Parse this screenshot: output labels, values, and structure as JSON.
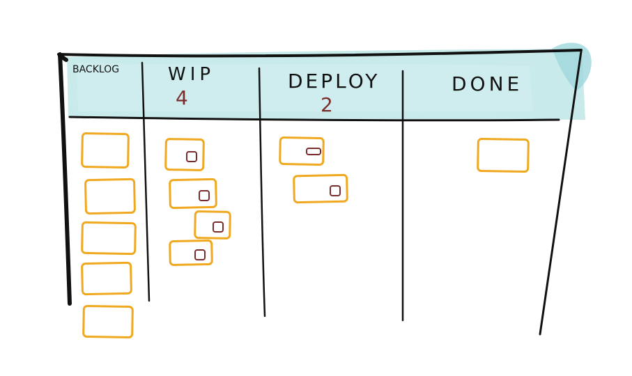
{
  "board": {
    "columns": [
      {
        "name": "BACKLOG",
        "limit": "",
        "cards": 5,
        "tagged_cards": 0
      },
      {
        "name": "WIP",
        "limit": "4",
        "cards": 4,
        "tagged_cards": 4
      },
      {
        "name": "DEPLOY",
        "limit": "2",
        "cards": 2,
        "tagged_cards": 2
      },
      {
        "name": "DONE",
        "limit": "",
        "cards": 1,
        "tagged_cards": 0
      }
    ]
  },
  "colors": {
    "header_wash": "#bfe6e8",
    "header_wash_dark": "#9fd7dc",
    "ink": "#111111",
    "card_outline": "#f0a81e",
    "card_fill": "#ffffff",
    "tag_ink": "#7a2b2b"
  }
}
